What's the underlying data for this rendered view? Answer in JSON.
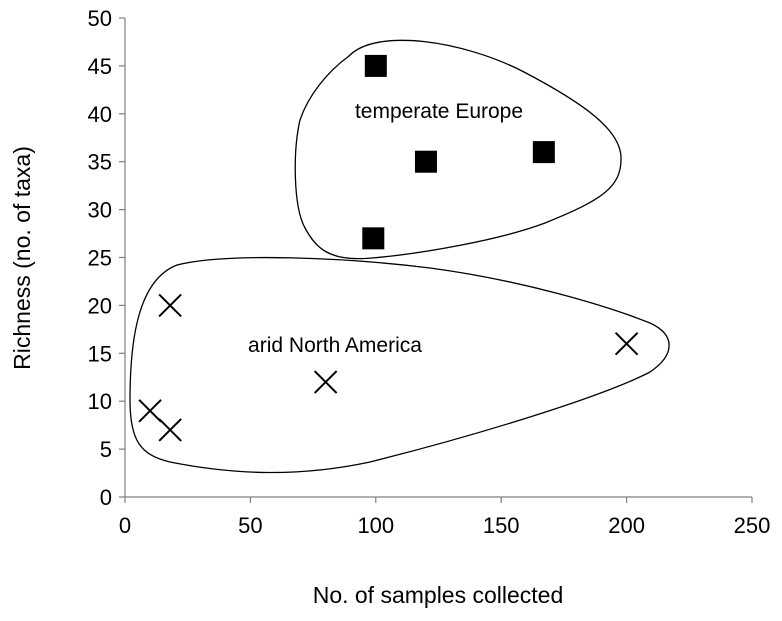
{
  "chart_data": {
    "type": "scatter",
    "xlabel": "No. of samples collected",
    "ylabel": "Richness (no. of taxa)",
    "xlim": [
      0,
      250
    ],
    "ylim": [
      0,
      50
    ],
    "xticks": [
      "0",
      "50",
      "100",
      "150",
      "200",
      "250"
    ],
    "yticks": [
      "0",
      "5",
      "10",
      "15",
      "20",
      "25",
      "30",
      "35",
      "40",
      "45",
      "50"
    ],
    "grid": false,
    "legend": "none",
    "series": [
      {
        "name": "temperate Europe",
        "marker": "square",
        "color": "#000000",
        "x": [
          100,
          120,
          167,
          99
        ],
        "y": [
          45,
          35,
          36,
          27
        ]
      },
      {
        "name": "arid North America",
        "marker": "cross",
        "color": "#000000",
        "x": [
          18,
          10,
          18,
          80,
          200
        ],
        "y": [
          20,
          9,
          7,
          12,
          16
        ]
      }
    ]
  }
}
